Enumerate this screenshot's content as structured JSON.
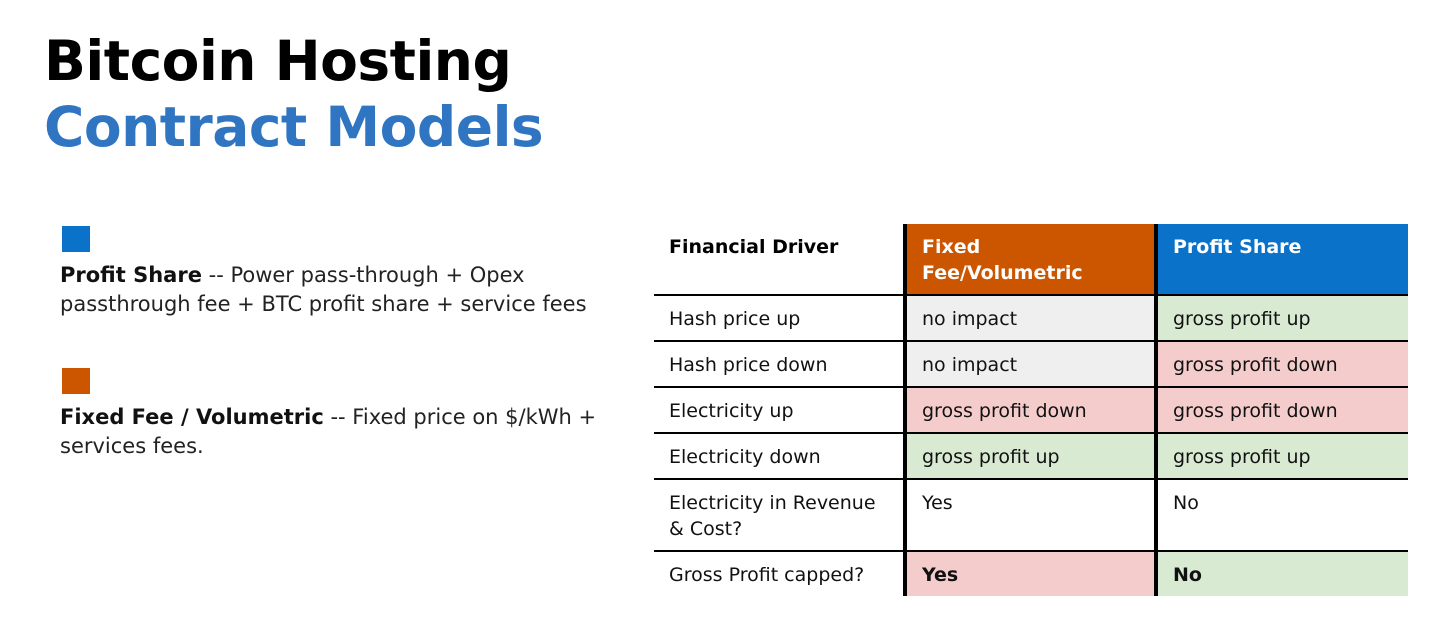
{
  "title": {
    "line1": "Bitcoin Hosting",
    "line2": "Contract Models"
  },
  "colors": {
    "title_accent": "#2f75c1",
    "profit_share": "#0b72c9",
    "fixed_fee": "#cc5500",
    "cell_gray": "#efefef",
    "cell_red": "#f4cccc",
    "cell_green": "#d9ead3"
  },
  "legend": {
    "profit_share": {
      "name": "Profit Share",
      "description": " -- Power pass-through + Opex passthrough fee + BTC profit share + service fees"
    },
    "fixed_fee": {
      "name": "Fixed Fee / Volumetric",
      "description": " -- Fixed price on $/kWh + services fees."
    }
  },
  "table": {
    "headers": [
      "Financial Driver",
      "Fixed Fee/Volumetric",
      "Profit Share"
    ],
    "rows": [
      {
        "driver": "Hash price up",
        "fixed": "no impact",
        "profit": "gross profit up"
      },
      {
        "driver": "Hash price down",
        "fixed": "no impact",
        "profit": "gross profit down"
      },
      {
        "driver": "Electricity up",
        "fixed": "gross profit down",
        "profit": "gross profit down"
      },
      {
        "driver": "Electricity down",
        "fixed": "gross profit up",
        "profit": "gross profit up"
      },
      {
        "driver": "Electricity in Revenue & Cost?",
        "fixed": "Yes",
        "profit": "No"
      },
      {
        "driver": "Gross Profit capped?",
        "fixed": "Yes",
        "profit": "No"
      }
    ]
  }
}
